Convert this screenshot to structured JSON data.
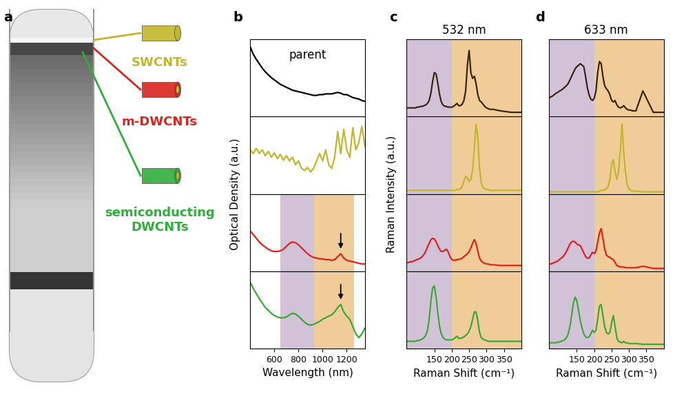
{
  "panel_labels": [
    "a",
    "b",
    "c",
    "d"
  ],
  "panel_a": {
    "labels": [
      {
        "text": "SWCNTs",
        "color": "#c2b62a"
      },
      {
        "text": "m-DWCNTs",
        "color": "#d8231f"
      },
      {
        "text": "semiconducting\nDWCNTs",
        "color": "#2fae3a"
      }
    ]
  },
  "chart_data": [
    {
      "type": "line",
      "xlabel": "Wavelength (nm)",
      "ylabel": "Optical Density (a.u.)",
      "x": [
        400,
        425,
        450,
        475,
        500,
        525,
        550,
        575,
        600,
        625,
        650,
        675,
        700,
        725,
        750,
        775,
        800,
        825,
        850,
        875,
        900,
        925,
        950,
        975,
        1000,
        1025,
        1050,
        1075,
        1100,
        1125,
        1150,
        1175,
        1200,
        1225,
        1250,
        1275,
        1300,
        1325,
        1350
      ],
      "xlim": [
        400,
        1350
      ],
      "xticks": [
        600,
        800,
        1000,
        1200
      ],
      "ylim": [
        0,
        1.05
      ],
      "yticks": [],
      "tick_labels": "x",
      "series": [
        {
          "color": "#000000",
          "annotation": "parent",
          "values": [
            0.95,
            0.85,
            0.78,
            0.72,
            0.66,
            0.61,
            0.57,
            0.53,
            0.5,
            0.47,
            0.44,
            0.42,
            0.4,
            0.38,
            0.36,
            0.35,
            0.34,
            0.33,
            0.32,
            0.31,
            0.3,
            0.29,
            0.29,
            0.3,
            0.3,
            0.31,
            0.31,
            0.31,
            0.32,
            0.33,
            0.32,
            0.3,
            0.3,
            0.28,
            0.26,
            0.25,
            0.24,
            0.22,
            0.21
          ]
        },
        {
          "color": "#c2b62a",
          "values": [
            0.6,
            0.55,
            0.62,
            0.55,
            0.6,
            0.52,
            0.58,
            0.5,
            0.56,
            0.48,
            0.54,
            0.46,
            0.52,
            0.45,
            0.5,
            0.4,
            0.45,
            0.35,
            0.32,
            0.36,
            0.3,
            0.35,
            0.45,
            0.55,
            0.45,
            0.6,
            0.4,
            0.35,
            0.5,
            0.85,
            0.55,
            0.88,
            0.6,
            0.5,
            0.9,
            0.6,
            0.7,
            0.92,
            0.65
          ]
        },
        {
          "color": "#e3201b",
          "arrow_x": 1150,
          "regions": [
            {
              "x": [
                650,
                930
              ],
              "color": "#d2c2d8"
            },
            {
              "x": [
                930,
                1260
              ],
              "color": "#f0cc98"
            }
          ],
          "values": [
            0.55,
            0.5,
            0.45,
            0.4,
            0.36,
            0.33,
            0.3,
            0.28,
            0.27,
            0.27,
            0.28,
            0.3,
            0.34,
            0.38,
            0.4,
            0.39,
            0.36,
            0.32,
            0.28,
            0.24,
            0.21,
            0.19,
            0.18,
            0.17,
            0.17,
            0.16,
            0.16,
            0.15,
            0.16,
            0.2,
            0.24,
            0.18,
            0.15,
            0.14,
            0.13,
            0.12,
            0.11,
            0.1,
            0.1
          ]
        },
        {
          "color": "#3aa935",
          "arrow_x": 1150,
          "regions": [
            {
              "x": [
                650,
                930
              ],
              "color": "#d2c2d8"
            },
            {
              "x": [
                930,
                1260
              ],
              "color": "#f0cc98"
            }
          ],
          "values": [
            0.9,
            0.82,
            0.75,
            0.68,
            0.62,
            0.56,
            0.52,
            0.48,
            0.45,
            0.43,
            0.42,
            0.42,
            0.43,
            0.46,
            0.48,
            0.47,
            0.44,
            0.4,
            0.36,
            0.33,
            0.32,
            0.33,
            0.35,
            0.37,
            0.4,
            0.42,
            0.44,
            0.46,
            0.5,
            0.56,
            0.6,
            0.5,
            0.44,
            0.4,
            0.3,
            0.2,
            0.15,
            0.2,
            0.28
          ]
        }
      ]
    },
    {
      "type": "line",
      "title": "532 nm",
      "xlabel": "Raman Shift (cm⁻¹)",
      "ylabel": "Raman Intensity (a.u.)",
      "x": [
        70,
        75,
        80,
        85,
        90,
        95,
        100,
        105,
        110,
        115,
        120,
        125,
        130,
        135,
        140,
        145,
        150,
        155,
        160,
        165,
        170,
        175,
        180,
        185,
        190,
        195,
        200,
        205,
        210,
        215,
        220,
        225,
        230,
        235,
        240,
        245,
        250,
        255,
        260,
        265,
        270,
        275,
        280,
        285,
        290,
        295,
        300,
        305,
        310,
        315,
        320,
        340,
        370,
        400
      ],
      "xlim": [
        70,
        400
      ],
      "xticks": [
        150,
        200,
        250,
        300,
        350
      ],
      "ylim": [
        0,
        1.05
      ],
      "yticks": [],
      "tick_labels": "x",
      "series": [
        {
          "color": "#3a2512",
          "regions": [
            {
              "x": [
                70,
                200
              ],
              "color": "#d2c2d8"
            },
            {
              "x": [
                200,
                400
              ],
              "color": "#f0cc98"
            }
          ],
          "values": [
            0.12,
            0.12,
            0.12,
            0.12,
            0.12,
            0.12,
            0.13,
            0.13,
            0.14,
            0.14,
            0.15,
            0.16,
            0.18,
            0.22,
            0.32,
            0.48,
            0.6,
            0.58,
            0.45,
            0.3,
            0.2,
            0.16,
            0.14,
            0.14,
            0.13,
            0.13,
            0.13,
            0.14,
            0.16,
            0.18,
            0.15,
            0.15,
            0.17,
            0.22,
            0.35,
            0.7,
            0.9,
            0.6,
            0.52,
            0.55,
            0.45,
            0.3,
            0.22,
            0.2,
            0.17,
            0.14,
            0.12,
            0.11,
            0.1,
            0.1,
            0.1,
            0.08,
            0.06,
            0.06
          ]
        },
        {
          "color": "#c2b62a",
          "regions": [
            {
              "x": [
                70,
                200
              ],
              "color": "#d2c2d8"
            },
            {
              "x": [
                200,
                400
              ],
              "color": "#f0cc98"
            }
          ],
          "values": [
            0.05,
            0.05,
            0.05,
            0.05,
            0.05,
            0.05,
            0.05,
            0.05,
            0.05,
            0.05,
            0.05,
            0.05,
            0.05,
            0.05,
            0.05,
            0.05,
            0.05,
            0.05,
            0.05,
            0.05,
            0.05,
            0.05,
            0.05,
            0.05,
            0.05,
            0.05,
            0.05,
            0.05,
            0.05,
            0.06,
            0.06,
            0.07,
            0.1,
            0.18,
            0.24,
            0.22,
            0.17,
            0.2,
            0.32,
            0.62,
            0.95,
            0.78,
            0.35,
            0.15,
            0.09,
            0.07,
            0.06,
            0.06,
            0.05,
            0.05,
            0.05,
            0.05,
            0.05,
            0.05
          ]
        },
        {
          "color": "#e3201b",
          "regions": [
            {
              "x": [
                70,
                200
              ],
              "color": "#d2c2d8"
            },
            {
              "x": [
                200,
                400
              ],
              "color": "#f0cc98"
            }
          ],
          "values": [
            0.12,
            0.12,
            0.13,
            0.13,
            0.14,
            0.15,
            0.16,
            0.17,
            0.18,
            0.2,
            0.23,
            0.27,
            0.33,
            0.38,
            0.43,
            0.45,
            0.44,
            0.4,
            0.35,
            0.3,
            0.27,
            0.27,
            0.29,
            0.3,
            0.26,
            0.2,
            0.16,
            0.15,
            0.15,
            0.16,
            0.16,
            0.17,
            0.18,
            0.2,
            0.22,
            0.24,
            0.27,
            0.32,
            0.38,
            0.43,
            0.38,
            0.27,
            0.18,
            0.14,
            0.12,
            0.11,
            0.1,
            0.1,
            0.09,
            0.09,
            0.09,
            0.08,
            0.08,
            0.08
          ]
        },
        {
          "color": "#3aa935",
          "regions": [
            {
              "x": [
                70,
                200
              ],
              "color": "#d2c2d8"
            },
            {
              "x": [
                200,
                400
              ],
              "color": "#f0cc98"
            }
          ],
          "values": [
            0.1,
            0.1,
            0.1,
            0.1,
            0.1,
            0.1,
            0.11,
            0.11,
            0.12,
            0.13,
            0.15,
            0.18,
            0.25,
            0.4,
            0.65,
            0.83,
            0.85,
            0.7,
            0.48,
            0.3,
            0.2,
            0.15,
            0.13,
            0.12,
            0.12,
            0.12,
            0.12,
            0.13,
            0.15,
            0.17,
            0.14,
            0.14,
            0.15,
            0.16,
            0.18,
            0.2,
            0.24,
            0.3,
            0.4,
            0.5,
            0.5,
            0.38,
            0.22,
            0.15,
            0.13,
            0.12,
            0.11,
            0.1,
            0.1,
            0.1,
            0.1,
            0.1,
            0.1,
            0.1
          ]
        }
      ]
    },
    {
      "type": "line",
      "title": "633 nm",
      "xlabel": "Raman Shift (cm⁻¹)",
      "x": [
        70,
        75,
        80,
        85,
        90,
        95,
        100,
        105,
        110,
        115,
        120,
        125,
        130,
        135,
        140,
        145,
        150,
        155,
        160,
        165,
        170,
        175,
        180,
        185,
        190,
        195,
        200,
        205,
        210,
        215,
        220,
        225,
        230,
        235,
        240,
        245,
        250,
        255,
        260,
        265,
        270,
        275,
        280,
        285,
        290,
        295,
        300,
        305,
        310,
        315,
        320,
        340,
        370,
        400
      ],
      "xlim": [
        70,
        400
      ],
      "xticks": [
        150,
        200,
        250,
        300,
        350
      ],
      "ylim": [
        0,
        1.05
      ],
      "yticks": [],
      "tick_labels": "x",
      "series": [
        {
          "color": "#3a2512",
          "regions": [
            {
              "x": [
                70,
                200
              ],
              "color": "#d2c2d8"
            },
            {
              "x": [
                200,
                400
              ],
              "color": "#f0cc98"
            }
          ],
          "values": [
            0.25,
            0.27,
            0.28,
            0.3,
            0.32,
            0.33,
            0.35,
            0.36,
            0.38,
            0.4,
            0.42,
            0.45,
            0.5,
            0.55,
            0.6,
            0.65,
            0.68,
            0.7,
            0.72,
            0.7,
            0.68,
            0.55,
            0.4,
            0.3,
            0.24,
            0.22,
            0.25,
            0.35,
            0.6,
            0.75,
            0.72,
            0.55,
            0.42,
            0.38,
            0.35,
            0.3,
            0.22,
            0.2,
            0.22,
            0.16,
            0.13,
            0.12,
            0.13,
            0.15,
            0.12,
            0.1,
            0.09,
            0.09,
            0.08,
            0.08,
            0.08,
            0.35,
            0.06,
            0.06
          ]
        },
        {
          "color": "#c2b62a",
          "regions": [
            {
              "x": [
                70,
                200
              ],
              "color": "#d2c2d8"
            },
            {
              "x": [
                200,
                400
              ],
              "color": "#f0cc98"
            }
          ],
          "values": [
            0.03,
            0.03,
            0.03,
            0.03,
            0.03,
            0.03,
            0.03,
            0.03,
            0.03,
            0.03,
            0.03,
            0.03,
            0.03,
            0.03,
            0.03,
            0.03,
            0.03,
            0.03,
            0.03,
            0.03,
            0.03,
            0.03,
            0.03,
            0.03,
            0.03,
            0.03,
            0.03,
            0.03,
            0.03,
            0.04,
            0.05,
            0.05,
            0.06,
            0.07,
            0.1,
            0.2,
            0.4,
            0.47,
            0.3,
            0.2,
            0.3,
            0.6,
            0.95,
            0.55,
            0.3,
            0.12,
            0.07,
            0.05,
            0.04,
            0.04,
            0.04,
            0.03,
            0.03,
            0.03
          ]
        },
        {
          "color": "#e3201b",
          "regions": [
            {
              "x": [
                70,
                200
              ],
              "color": "#d2c2d8"
            },
            {
              "x": [
                200,
                400
              ],
              "color": "#f0cc98"
            }
          ],
          "values": [
            0.1,
            0.1,
            0.11,
            0.12,
            0.13,
            0.14,
            0.16,
            0.18,
            0.2,
            0.23,
            0.27,
            0.32,
            0.37,
            0.4,
            0.41,
            0.4,
            0.37,
            0.36,
            0.35,
            0.3,
            0.25,
            0.2,
            0.18,
            0.18,
            0.22,
            0.26,
            0.24,
            0.28,
            0.4,
            0.52,
            0.58,
            0.45,
            0.3,
            0.22,
            0.2,
            0.19,
            0.17,
            0.16,
            0.12,
            0.08,
            0.07,
            0.06,
            0.06,
            0.06,
            0.05,
            0.05,
            0.05,
            0.05,
            0.05,
            0.05,
            0.05,
            0.07,
            0.04,
            0.04
          ]
        },
        {
          "color": "#3aa935",
          "regions": [
            {
              "x": [
                70,
                200
              ],
              "color": "#d2c2d8"
            },
            {
              "x": [
                200,
                400
              ],
              "color": "#f0cc98"
            }
          ],
          "values": [
            0.08,
            0.08,
            0.08,
            0.08,
            0.08,
            0.09,
            0.09,
            0.1,
            0.11,
            0.12,
            0.15,
            0.2,
            0.3,
            0.45,
            0.62,
            0.7,
            0.65,
            0.52,
            0.38,
            0.28,
            0.2,
            0.16,
            0.15,
            0.16,
            0.2,
            0.25,
            0.22,
            0.25,
            0.4,
            0.58,
            0.6,
            0.45,
            0.3,
            0.22,
            0.2,
            0.22,
            0.35,
            0.45,
            0.3,
            0.15,
            0.1,
            0.09,
            0.08,
            0.1,
            0.08,
            0.08,
            0.07,
            0.07,
            0.07,
            0.07,
            0.07,
            0.06,
            0.06,
            0.06
          ]
        }
      ]
    }
  ]
}
